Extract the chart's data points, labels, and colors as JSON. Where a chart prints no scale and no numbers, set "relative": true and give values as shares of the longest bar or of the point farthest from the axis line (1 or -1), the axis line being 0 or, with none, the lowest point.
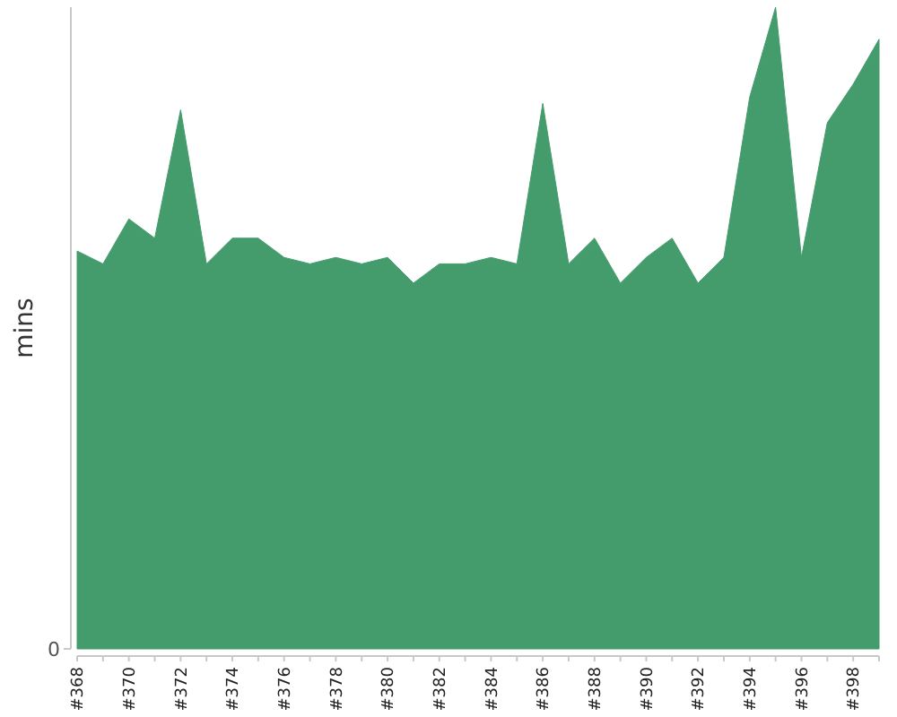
{
  "chart_data": {
    "type": "area",
    "ylabel": "mins",
    "relative": true,
    "annotations": [
      "0"
    ],
    "color": "#449c6c",
    "categories": [
      "#368",
      null,
      "#370",
      null,
      "#372",
      null,
      "#374",
      null,
      "#376",
      null,
      "#378",
      null,
      "#380",
      null,
      "#382",
      null,
      "#384",
      null,
      "#386",
      null,
      "#388",
      null,
      "#390",
      null,
      "#392",
      null,
      "#394",
      null,
      "#396",
      null,
      "#398",
      null
    ],
    "values": [
      0.62,
      0.6,
      0.67,
      0.64,
      0.84,
      0.6,
      0.64,
      0.64,
      0.61,
      0.6,
      0.61,
      0.6,
      0.61,
      0.57,
      0.6,
      0.6,
      0.61,
      0.6,
      0.85,
      0.6,
      0.64,
      0.57,
      0.61,
      0.64,
      0.57,
      0.61,
      0.86,
      1,
      0.61,
      0.82,
      0.88,
      0.95
    ]
  }
}
